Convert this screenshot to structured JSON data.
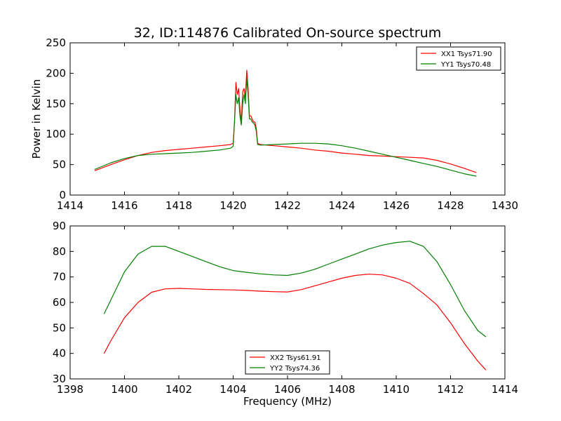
{
  "figure": {
    "title": "32, ID:114876 Calibrated On-source spectrum"
  },
  "chart_data": [
    {
      "type": "line",
      "title": "32, ID:114876 Calibrated On-source spectrum",
      "xlabel": "",
      "ylabel": "Power in Kelvin",
      "xlim": [
        1414,
        1430
      ],
      "ylim": [
        0,
        250
      ],
      "xticks": [
        1414,
        1416,
        1418,
        1420,
        1422,
        1424,
        1426,
        1428,
        1430
      ],
      "yticks": [
        0,
        50,
        100,
        150,
        200,
        250
      ],
      "grid": false,
      "legend_position": "upper right",
      "series": [
        {
          "name": "XX1 Tsys71.90",
          "color": "#ff0000",
          "x": [
            1414.9,
            1415.5,
            1416.0,
            1416.5,
            1417.0,
            1417.5,
            1418.0,
            1418.5,
            1419.0,
            1419.5,
            1419.9,
            1420.0,
            1420.05,
            1420.1,
            1420.15,
            1420.2,
            1420.25,
            1420.3,
            1420.35,
            1420.4,
            1420.45,
            1420.5,
            1420.55,
            1420.6,
            1420.65,
            1420.7,
            1420.75,
            1420.8,
            1420.85,
            1420.9,
            1421.0,
            1421.5,
            1422.0,
            1422.5,
            1423.0,
            1423.5,
            1424.0,
            1424.5,
            1425.0,
            1425.5,
            1426.0,
            1426.5,
            1427.0,
            1427.5,
            1428.0,
            1428.5,
            1428.95
          ],
          "y": [
            40,
            50,
            58,
            65,
            70,
            73,
            75,
            77,
            79,
            81,
            83,
            85,
            120,
            185,
            165,
            175,
            140,
            120,
            170,
            175,
            160,
            205,
            175,
            130,
            130,
            125,
            120,
            120,
            110,
            85,
            83,
            81,
            79,
            77,
            74,
            72,
            69,
            67,
            65,
            64,
            63,
            62,
            61,
            57,
            51,
            44,
            37
          ]
        },
        {
          "name": "YY1 Tsys70.48",
          "color": "#008000",
          "x": [
            1414.9,
            1415.5,
            1416.0,
            1416.5,
            1417.0,
            1417.5,
            1418.0,
            1418.5,
            1419.0,
            1419.5,
            1419.9,
            1420.0,
            1420.05,
            1420.1,
            1420.15,
            1420.2,
            1420.25,
            1420.3,
            1420.35,
            1420.4,
            1420.45,
            1420.5,
            1420.55,
            1420.6,
            1420.65,
            1420.7,
            1420.75,
            1420.8,
            1420.85,
            1420.9,
            1421.0,
            1421.5,
            1422.0,
            1422.5,
            1423.0,
            1423.5,
            1424.0,
            1424.5,
            1425.0,
            1425.5,
            1426.0,
            1426.5,
            1427.0,
            1427.5,
            1428.0,
            1428.5,
            1428.95
          ],
          "y": [
            42,
            53,
            60,
            65,
            67,
            68,
            69,
            70,
            72,
            74,
            77,
            80,
            120,
            165,
            150,
            160,
            130,
            115,
            150,
            165,
            150,
            192,
            165,
            125,
            125,
            120,
            118,
            115,
            105,
            83,
            82,
            83,
            84,
            85,
            85,
            84,
            81,
            77,
            72,
            67,
            62,
            57,
            52,
            47,
            41,
            35,
            31
          ]
        }
      ]
    },
    {
      "type": "line",
      "title": "",
      "xlabel": "Frequency (MHz)",
      "ylabel": "",
      "xlim": [
        1398,
        1414
      ],
      "ylim": [
        30,
        90
      ],
      "xticks": [
        1398,
        1400,
        1402,
        1404,
        1406,
        1408,
        1410,
        1412,
        1414
      ],
      "yticks": [
        30,
        40,
        50,
        60,
        70,
        80,
        90
      ],
      "grid": false,
      "legend_position": "lower center",
      "series": [
        {
          "name": "XX2 Tsys61.91",
          "color": "#ff0000",
          "x": [
            1399.25,
            1399.5,
            1400.0,
            1400.5,
            1401.0,
            1401.5,
            1402.0,
            1402.5,
            1403.0,
            1403.5,
            1404.0,
            1404.5,
            1405.0,
            1405.5,
            1406.0,
            1406.5,
            1407.0,
            1407.5,
            1408.0,
            1408.5,
            1409.0,
            1409.5,
            1410.0,
            1410.5,
            1411.0,
            1411.5,
            1412.0,
            1412.5,
            1413.0,
            1413.3
          ],
          "y": [
            40,
            45,
            54,
            60,
            64,
            65.3,
            65.5,
            65.3,
            65.1,
            65.0,
            64.9,
            64.7,
            64.4,
            64.2,
            64.1,
            65.0,
            66.5,
            68.0,
            69.5,
            70.6,
            71.1,
            70.8,
            69.5,
            67.5,
            63.5,
            59,
            52,
            44,
            37,
            33.5
          ]
        },
        {
          "name": "YY2 Tsys74.36",
          "color": "#008000",
          "x": [
            1399.25,
            1399.5,
            1400.0,
            1400.5,
            1401.0,
            1401.5,
            1402.0,
            1402.5,
            1403.0,
            1403.5,
            1404.0,
            1404.5,
            1405.0,
            1405.5,
            1406.0,
            1406.5,
            1407.0,
            1407.5,
            1408.0,
            1408.5,
            1409.0,
            1409.5,
            1410.0,
            1410.5,
            1411.0,
            1411.5,
            1412.0,
            1412.5,
            1413.0,
            1413.3
          ],
          "y": [
            55.5,
            61,
            72,
            79,
            82,
            82,
            80,
            78,
            76,
            74,
            72.5,
            71.8,
            71.2,
            70.8,
            70.6,
            71.5,
            73,
            75,
            77,
            79,
            81,
            82.5,
            83.5,
            84,
            82,
            76,
            67,
            57,
            49,
            46.5
          ]
        }
      ]
    }
  ]
}
